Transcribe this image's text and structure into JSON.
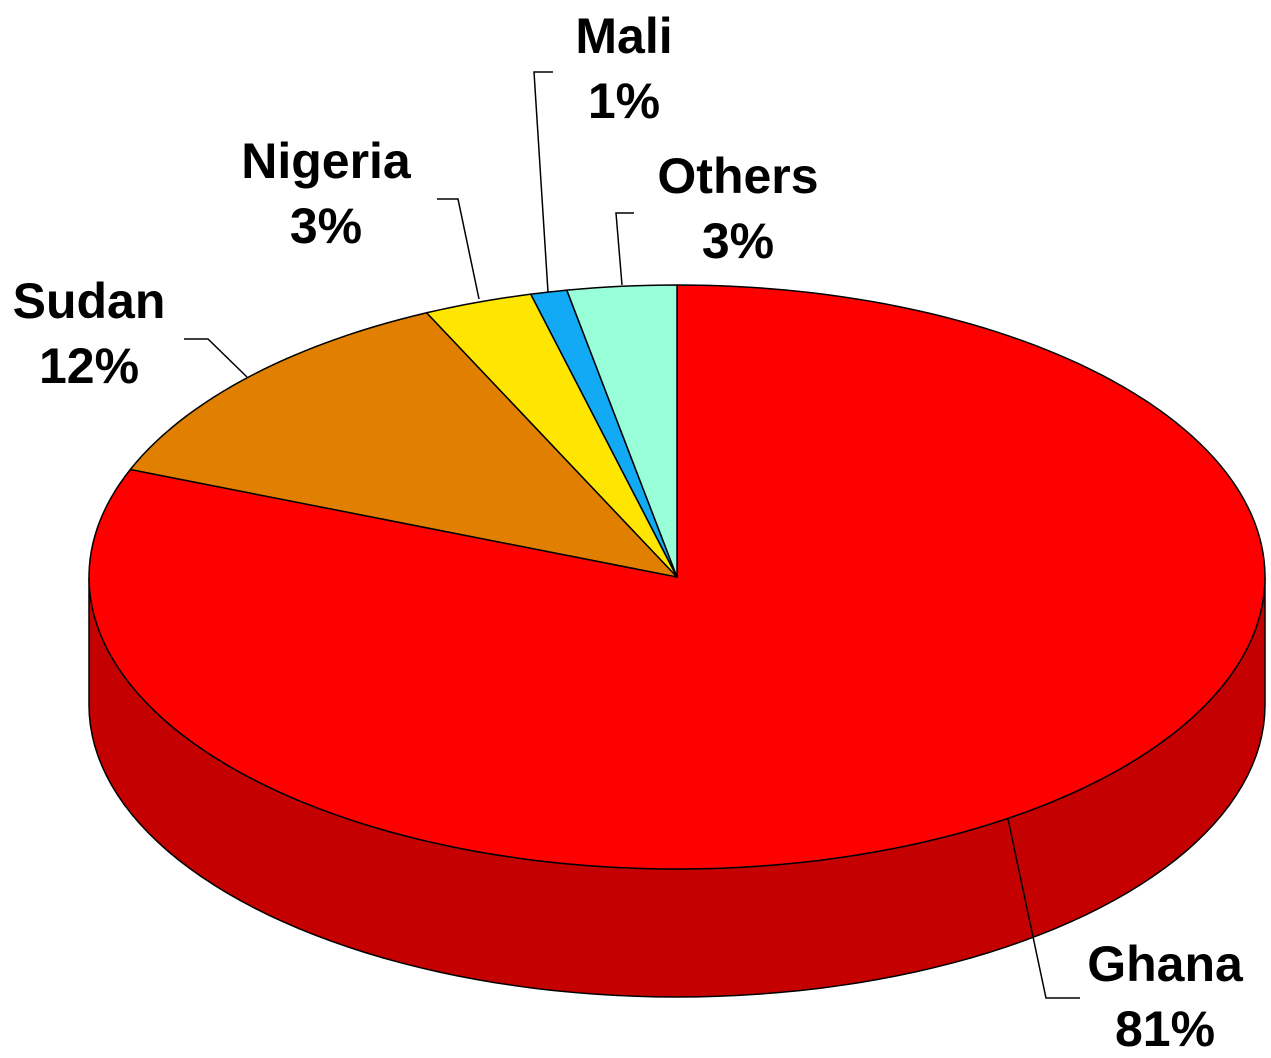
{
  "chart_data": {
    "type": "pie",
    "style": "3d",
    "categories": [
      "Ghana",
      "Sudan",
      "Nigeria",
      "Mali",
      "Others"
    ],
    "values": [
      81,
      12,
      3,
      1,
      3
    ],
    "labels": [
      "81%",
      "12%",
      "3%",
      "1%",
      "3%"
    ],
    "colors": [
      "#FF0000",
      "#E07F00",
      "#FFE600",
      "#12AAF5",
      "#99FFD9"
    ],
    "side_colors": [
      "#C50000",
      "#A85F00",
      "#C8B400",
      "#0E84C0",
      "#74C8A8"
    ],
    "title": "",
    "legend": "none"
  }
}
